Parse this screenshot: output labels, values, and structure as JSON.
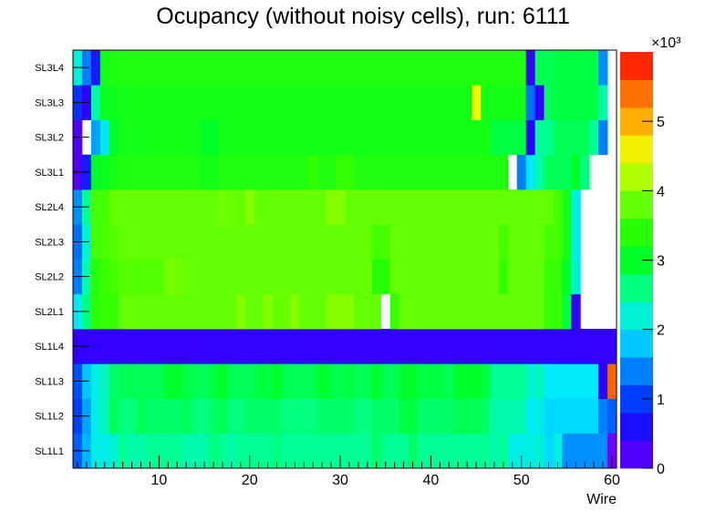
{
  "chart_data": {
    "type": "heatmap",
    "title": "Ocupancy (without noisy cells), run: 6111",
    "xlabel": "Wire",
    "ylabel": "",
    "xlim": [
      0.5,
      60.5
    ],
    "x_ticks": [
      10,
      20,
      30,
      40,
      50,
      60
    ],
    "y_categories": [
      "SL1L1",
      "SL1L2",
      "SL1L3",
      "SL1L4",
      "SL2L1",
      "SL2L2",
      "SL2L3",
      "SL2L4",
      "SL3L1",
      "SL3L2",
      "SL3L3",
      "SL3L4"
    ],
    "z_range": [
      0,
      6000
    ],
    "z_multiplier_label": "×10³",
    "z_ticks": [
      {
        "value": 0,
        "label": "0"
      },
      {
        "value": 1000,
        "label": "1"
      },
      {
        "value": 2000,
        "label": "2"
      },
      {
        "value": 3000,
        "label": "3"
      },
      {
        "value": 4000,
        "label": "4"
      },
      {
        "value": 5000,
        "label": "5"
      }
    ],
    "row_value_strings": [
      "1200,1700,2100,2100,2200,2500,2400,2400,2500,2500,2500,2500,2400,2400,2400,2600,2500,2400,2500,2500,2500,2500,2600,2500,2500,2500,2500,2500,2500,2500,2500,2500,2500,2700,2500,2500,2500,2700,2500,2500,2500,2500,2500,2500,2500,2500,2400,2500,2100,2100,2100,2200,1900,2100,1500,1500,1500,1500,1500,0",
      "1000,1600,2100,2300,2800,2600,2600,2800,2700,2700,2700,2700,2800,2600,2600,2700,2800,2600,2600,2700,2700,2700,2700,2600,2600,2600,2600,2700,2700,2700,2700,2600,2600,2700,2700,2700,2900,2900,2700,2700,2700,2700,2800,2800,2800,2700,2400,2400,2400,2400,2000,2100,1900,1900,1900,1900,1900,1900,1400,1200",
      "1100,1800,2100,2300,2700,2800,2800,2800,2800,2800,3000,3000,2900,2800,2800,2900,3000,2800,2800,2800,2900,2900,3000,2800,2800,2800,2800,3000,2900,2800,2900,2800,2800,3000,2800,2800,3000,3000,2900,2900,2900,2800,3000,3000,3000,2900,2500,2500,2500,2500,2200,2300,2000,2000,2000,2000,2000,2000,500,5500",
      "400,400,400,400,400,400,400,400,400,400,400,400,400,400,400,400,400,400,400,400,400,400,400,400,400,400,400,400,400,400,400,400,400,400,400,400,400,400,400,400,400,400,400,400,400,400,400,400,400,400,400,400,400,400,400,400,400,400,400,400",
      "2000,2600,3400,3500,3500,3800,3800,3800,3800,3800,3800,3800,3800,3800,3800,3800,3800,3800,4000,3800,3800,4000,3800,3800,4000,3800,3800,3800,4000,4000,4000,3800,3800,3800,-1,3500,3800,3800,3800,3800,3800,3800,3800,3800,3800,3800,3800,3800,3800,3800,3800,3800,3500,3500,2900,400,-1,-1,-1,-1",
      "1400,2400,3400,3500,3600,3700,3700,3700,3700,3700,3900,3900,3800,3800,3800,3800,3800,3800,3800,3800,3800,3800,3800,3800,3800,3800,3800,3800,3800,3800,3800,3800,3800,3400,3400,3800,3800,3800,3800,3800,3800,3800,3800,3800,3800,3800,3800,3500,3800,3800,3800,3800,3500,3500,3000,2200,-1,-1,-1,-1",
      "1300,2200,3600,3600,3700,3800,3800,3800,3800,3800,3800,3800,3800,3800,3800,3800,3800,3800,3800,3800,3800,3800,3800,3800,3800,3800,3800,3800,3800,3800,3800,3800,3800,3600,3600,3800,3800,3800,3800,3800,3800,3800,3800,3800,3800,3800,3800,3600,3800,3800,3800,3800,3600,3600,3200,2100,-1,-1,-1,-1",
      "1500,2500,3600,3600,3800,3800,3800,3800,3800,3800,3800,3800,3800,3800,3800,3800,3900,3800,3800,4000,3800,3800,3800,3800,3800,3800,3800,3800,4000,4000,3800,3800,3800,3800,3800,3800,3800,3800,3800,3800,3800,3800,3800,3800,3800,3800,3800,3800,3800,3800,3800,3800,3800,3600,3200,2100,-1,-1,-1,-1",
      "200,700,3000,3100,3200,3300,3300,3300,3300,3300,3300,3300,3300,3300,3200,3200,3300,3300,3300,3300,3300,3300,3300,3300,3300,3300,3500,3300,3300,3500,3500,3300,3300,3300,3300,3300,3300,3300,3300,3300,3300,3300,3300,3300,3300,3300,3300,3300,-1,1400,2000,2400,2800,2800,2800,3000,2600,-1,-1,-1",
      "200,-1,1600,2000,3000,3200,3200,3200,3200,3200,3200,3200,3200,3200,3000,3000,3200,3200,3200,3200,3200,3200,3200,3200,3200,3200,3200,3200,3200,3200,3200,3200,3200,3200,3200,3200,3200,3200,3200,3200,3200,3200,3200,3200,3200,3200,2900,2900,2900,2900,500,2500,2500,2800,2800,2800,2800,2500,1400,-1",
      "900,400,2400,3100,3100,3200,3200,3200,3200,3200,3200,3200,3200,3200,3200,3200,3200,3200,3200,3200,3200,3200,3200,3200,3200,3200,3200,3200,3200,3200,3200,3200,3200,3200,3200,3200,3200,3200,3200,3200,3200,3200,3200,3200,4500,3200,3200,3200,3200,3200,1300,400,2800,2900,2900,2900,2900,2900,2400,-1",
      "2200,1400,700,3200,3300,3300,3300,3300,3300,3300,3300,3300,3300,3300,3300,3300,3300,3300,3300,3300,3300,3300,3300,3300,3300,3300,3300,3300,3300,3300,3300,3300,3300,3300,3300,3300,3300,3300,3300,3300,3300,3300,3300,3300,3300,3300,3300,3300,3300,3300,400,2800,2800,2900,2900,2900,2900,2900,1500,-1"
    ]
  }
}
